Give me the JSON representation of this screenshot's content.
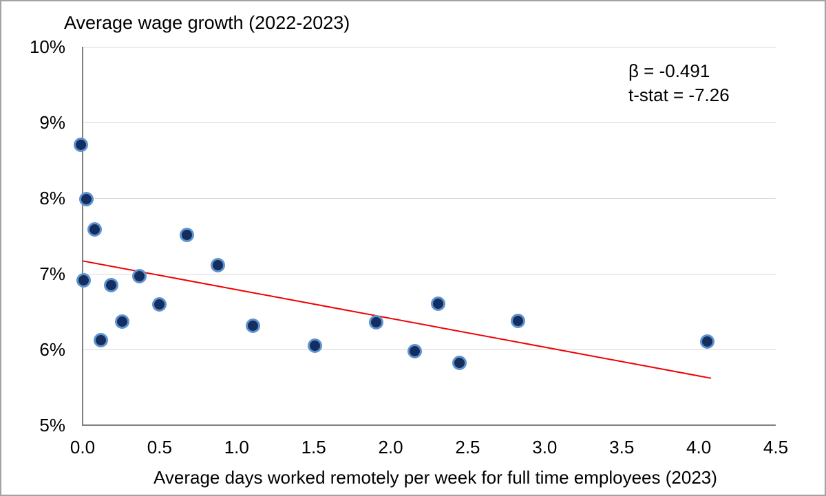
{
  "chart_data": {
    "type": "scatter",
    "title": "Average wage growth (2022-2023)",
    "xlabel": "Average days worked remotely per week for full time employees (2023)",
    "ylabel": "Average wage growth (2022-2023)",
    "xlim": [
      0.0,
      4.5
    ],
    "ylim": [
      5,
      10
    ],
    "grid": "horizontal",
    "x_tick_labels": [
      "0.0",
      "0.5",
      "1.0",
      "1.5",
      "2.0",
      "2.5",
      "3.0",
      "3.5",
      "4.0",
      "4.5"
    ],
    "x_tick_values": [
      0.0,
      0.5,
      1.0,
      1.5,
      2.0,
      2.5,
      3.0,
      3.5,
      4.0,
      4.5
    ],
    "y_tick_labels": [
      "5%",
      "6%",
      "7%",
      "8%",
      "9%",
      "10%"
    ],
    "y_tick_values": [
      5,
      6,
      7,
      8,
      9,
      10
    ],
    "points": [
      [
        0.0,
        8.68
      ],
      [
        0.02,
        6.89
      ],
      [
        0.04,
        7.96
      ],
      [
        0.09,
        7.56
      ],
      [
        0.13,
        6.1
      ],
      [
        0.2,
        6.82
      ],
      [
        0.27,
        6.34
      ],
      [
        0.38,
        6.94
      ],
      [
        0.51,
        6.57
      ],
      [
        0.69,
        7.49
      ],
      [
        0.89,
        7.09
      ],
      [
        1.12,
        6.29
      ],
      [
        1.52,
        6.02
      ],
      [
        1.92,
        6.33
      ],
      [
        2.17,
        5.95
      ],
      [
        2.32,
        6.58
      ],
      [
        2.46,
        5.8
      ],
      [
        2.84,
        6.35
      ],
      [
        4.07,
        6.08
      ]
    ],
    "trendline": {
      "x1": 0.0,
      "y1": 7.17,
      "x2": 4.08,
      "y2": 5.62
    },
    "regression": {
      "beta": -0.491,
      "t_stat": -7.26
    },
    "annotation": {
      "beta_label": "β = -0.491",
      "tstat_label": "t-stat = -7.26"
    },
    "colors": {
      "marker_fill": "#132e5f",
      "marker_edge": "#5e93ce",
      "trend_line": "#f00000",
      "gridline": "#d9d9d9",
      "axis_line": "#808080",
      "text": "#000000",
      "figure_border": "#a3a3a3"
    }
  }
}
